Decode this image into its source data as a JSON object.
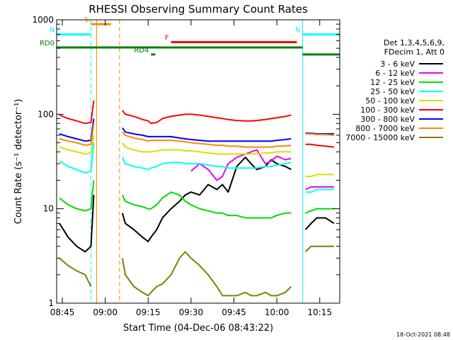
{
  "chart_data": {
    "type": "line",
    "title": "RHESSI Observing Summary Count Rates",
    "xlabel": "Start Time (04-Dec-06 08:43:22)",
    "ylabel": "Count Rate (s⁻¹ detector⁻¹)",
    "yscale": "log",
    "ylim": [
      1,
      1000
    ],
    "xlim": [
      "08:43",
      "10:22"
    ],
    "x_ticks": [
      "08:45",
      "09:00",
      "09:15",
      "09:30",
      "09:45",
      "10:00",
      "10:15"
    ],
    "y_ticks": [
      "1",
      "10",
      "100",
      "1000"
    ],
    "date_stamp": "18-Oct-2021 08:48",
    "legend_header": [
      "Det 1,3,4,5,6,9,",
      "FDecim 1, Att 0"
    ],
    "grid": false,
    "legend_position": "right",
    "x": [
      "08:44",
      "08:47",
      "08:50",
      "08:53",
      "08:55",
      "08:56",
      "09:05",
      "09:06",
      "09:07",
      "09:10",
      "09:13",
      "09:15",
      "09:16",
      "09:18",
      "09:20",
      "09:23",
      "09:26",
      "09:28",
      "09:30",
      "09:33",
      "09:36",
      "09:39",
      "09:41",
      "09:43",
      "09:46",
      "09:49",
      "09:51",
      "09:53",
      "09:56",
      "09:58",
      "10:00",
      "10:03",
      "10:05",
      "10:08",
      "10:10",
      "10:12",
      "10:14",
      "10:17",
      "10:20"
    ],
    "series": [
      {
        "name": "3 - 6 keV",
        "color": "#000000",
        "values": [
          7,
          5,
          4,
          3.5,
          4,
          14,
          null,
          9,
          7,
          6,
          5,
          4.5,
          5,
          6,
          8,
          10,
          12,
          14,
          15,
          14,
          18,
          16,
          18,
          15,
          28,
          35,
          30,
          26,
          28,
          33,
          30,
          28,
          26,
          null,
          6,
          7,
          8,
          8,
          7
        ]
      },
      {
        "name": "6 - 12 keV",
        "color": "#ee00ee",
        "values": [
          null,
          null,
          null,
          null,
          null,
          null,
          null,
          null,
          null,
          null,
          null,
          null,
          null,
          null,
          null,
          null,
          null,
          null,
          25,
          30,
          26,
          20,
          22,
          30,
          35,
          38,
          40,
          42,
          30,
          32,
          36,
          33,
          34,
          null,
          16,
          17,
          17,
          17,
          17
        ]
      },
      {
        "name": "12 - 25 keV",
        "color": "#00dd00",
        "values": [
          13,
          11,
          10,
          9.5,
          10,
          20,
          null,
          14,
          12,
          11,
          10.5,
          10,
          10,
          11,
          13,
          15,
          14,
          12,
          11,
          10,
          9.5,
          9,
          9,
          8.5,
          8.5,
          8,
          8,
          8,
          8,
          8,
          8.5,
          9,
          9,
          null,
          9,
          9.5,
          10,
          10,
          10
        ]
      },
      {
        "name": "25 - 50 keV",
        "color": "#00ffff",
        "values": [
          32,
          28,
          26,
          24,
          25,
          50,
          null,
          35,
          30,
          28,
          27,
          26,
          27,
          28,
          30,
          31,
          31,
          30,
          30,
          30,
          29,
          28,
          28,
          27,
          27,
          27,
          27,
          27,
          28,
          28,
          29,
          30,
          31,
          null,
          15,
          15,
          16,
          16,
          16
        ]
      },
      {
        "name": "50 - 100 keV",
        "color": "#dddd00",
        "values": [
          45,
          42,
          40,
          38,
          39,
          60,
          null,
          50,
          45,
          42,
          40,
          40,
          40,
          41,
          42,
          42,
          42,
          41,
          41,
          40,
          39,
          38,
          38,
          38,
          38,
          38,
          38,
          38,
          39,
          39,
          40,
          40,
          40,
          null,
          22,
          22,
          23,
          23,
          23
        ]
      },
      {
        "name": "100 - 300 keV",
        "color": "#ff0000",
        "values": [
          98,
          90,
          85,
          80,
          82,
          140,
          null,
          110,
          100,
          95,
          88,
          85,
          80,
          82,
          90,
          95,
          98,
          100,
          100,
          98,
          95,
          92,
          90,
          88,
          86,
          85,
          85,
          86,
          88,
          90,
          92,
          95,
          98,
          null,
          48,
          48,
          47,
          46,
          45
        ]
      },
      {
        "name": "300 - 800 keV",
        "color": "#0000ff",
        "values": [
          62,
          58,
          55,
          52,
          53,
          90,
          null,
          72,
          65,
          62,
          60,
          58,
          58,
          58,
          58,
          58,
          56,
          55,
          54,
          53,
          52,
          52,
          52,
          52,
          52,
          52,
          52,
          52,
          52,
          52,
          53,
          54,
          55,
          null,
          63,
          63,
          62,
          62,
          62
        ]
      },
      {
        "name": "800 - 7000 keV",
        "color": "#ff8800",
        "values": [
          55,
          52,
          50,
          47,
          48,
          80,
          null,
          65,
          60,
          56,
          54,
          52,
          53,
          53,
          53,
          53,
          52,
          51,
          50,
          49,
          48,
          47,
          47,
          46,
          46,
          45,
          45,
          45,
          45,
          45,
          46,
          46,
          47,
          null,
          62,
          62,
          61,
          61,
          60
        ]
      },
      {
        "name": "7000 - 15000 keV",
        "color": "#808000",
        "values": [
          3,
          2.5,
          2.2,
          2,
          1.5,
          null,
          null,
          3,
          2,
          1.5,
          1.3,
          1.2,
          1.3,
          1.5,
          1.6,
          2,
          3,
          3.5,
          3,
          2.5,
          2,
          1.5,
          1.2,
          1.2,
          1.2,
          1.3,
          1.2,
          1.2,
          1.3,
          1.2,
          1.2,
          1.3,
          1.5,
          null,
          3.5,
          4,
          4,
          4,
          4
        ]
      }
    ],
    "annotations": [
      {
        "label": "S",
        "color": "#ff8800",
        "start": "08:55",
        "end": "09:02",
        "y": 900
      },
      {
        "label": "N",
        "color": "#00ffff",
        "start": "08:43",
        "end": "08:55",
        "y": 700
      },
      {
        "label": "N",
        "color": "#00ffff",
        "start": "10:09",
        "end": "10:22",
        "y": 700
      },
      {
        "label": "F",
        "color": "#ff0000",
        "start": "09:23",
        "end": "10:07",
        "y": 580
      },
      {
        "label": "RD0",
        "color": "#008000",
        "start": "08:43",
        "end": "10:09",
        "y": 510
      },
      {
        "label": "RD4",
        "color": "#008000",
        "start": "09:16",
        "end": "09:17",
        "y": 430
      },
      {
        "label": "",
        "color": "#008000",
        "start": "10:09",
        "end": "10:22",
        "y": 430
      }
    ],
    "vertical_markers": [
      {
        "time": "08:55",
        "color": "#00ffff",
        "style": "dashed"
      },
      {
        "time": "08:57",
        "color": "#ff8800",
        "style": "solid"
      },
      {
        "time": "09:05",
        "color": "#ff8800",
        "style": "dashed"
      },
      {
        "time": "10:09",
        "color": "#00ffff",
        "style": "solid"
      },
      {
        "time": "10:22",
        "color": "#00ffff",
        "style": "dashed"
      }
    ]
  }
}
